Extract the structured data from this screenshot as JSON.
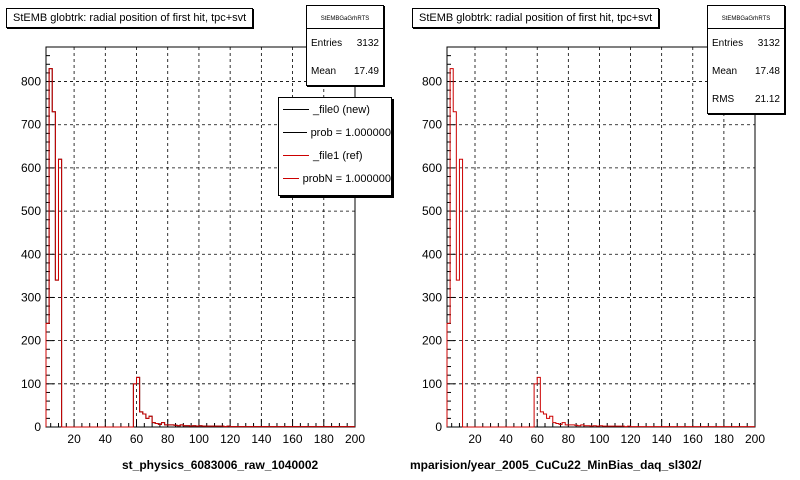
{
  "footer_text": "",
  "chart_data": [
    {
      "type": "histogram",
      "title": "StEMB globtrk: radial position of first hit, tpc+svt",
      "xlabel": "st_physics_6083006_raw_1040002",
      "ylabel": "",
      "xlim": [
        2,
        200
      ],
      "ylim": [
        0,
        880
      ],
      "xticks": [
        20,
        40,
        60,
        80,
        100,
        120,
        140,
        160,
        180,
        200
      ],
      "yticks": [
        0,
        100,
        200,
        300,
        400,
        500,
        600,
        700,
        800
      ],
      "grid": true,
      "bin_edges": [
        2,
        4,
        6,
        8,
        10,
        12,
        14,
        16,
        18,
        20,
        22,
        24,
        26,
        28,
        30,
        32,
        34,
        36,
        38,
        40,
        42,
        44,
        46,
        48,
        50,
        52,
        54,
        56,
        58,
        60,
        62,
        64,
        66,
        68,
        70,
        72,
        74,
        76,
        78,
        80,
        82,
        84,
        86,
        88,
        90,
        92,
        94,
        96,
        98,
        100,
        102,
        104,
        106,
        108,
        110,
        112,
        114,
        116,
        118,
        120,
        122,
        124,
        126,
        128,
        130,
        132,
        134,
        136,
        138,
        140,
        142,
        144,
        146,
        148,
        150,
        152,
        154,
        156,
        158,
        160,
        162,
        164,
        166,
        168,
        170,
        172,
        174,
        176,
        178,
        180,
        182,
        184,
        186,
        188,
        190,
        192,
        194,
        196,
        198,
        200
      ],
      "series": [
        {
          "name": "_file0 (new)",
          "color": "#000000",
          "values": [
            240,
            830,
            730,
            340,
            620,
            0,
            0,
            0,
            0,
            0,
            0,
            0,
            0,
            0,
            0,
            0,
            0,
            0,
            0,
            0,
            0,
            0,
            0,
            0,
            0,
            0,
            0,
            0,
            100,
            115,
            35,
            30,
            20,
            25,
            10,
            8,
            6,
            10,
            5,
            5,
            5,
            4,
            3,
            5,
            3,
            3,
            2,
            3,
            2,
            3,
            2,
            2,
            2,
            2,
            2,
            2,
            2,
            1,
            2,
            1,
            1,
            1,
            1,
            1,
            1,
            1,
            1,
            1,
            1,
            1,
            1,
            1,
            1,
            1,
            1,
            1,
            1,
            1,
            1,
            1,
            1,
            1,
            1,
            1,
            1,
            1,
            1,
            1,
            1,
            1,
            1,
            1,
            1,
            1,
            1,
            1,
            1,
            1,
            1
          ]
        },
        {
          "name": "_file1 (ref)",
          "color": "#cc0000",
          "values": [
            240,
            830,
            730,
            340,
            620,
            0,
            0,
            0,
            0,
            0,
            0,
            0,
            0,
            0,
            0,
            0,
            0,
            0,
            0,
            0,
            0,
            0,
            0,
            0,
            0,
            0,
            0,
            0,
            100,
            115,
            35,
            30,
            20,
            25,
            10,
            8,
            6,
            10,
            5,
            5,
            5,
            4,
            3,
            5,
            3,
            3,
            2,
            3,
            2,
            3,
            2,
            2,
            2,
            2,
            2,
            2,
            2,
            1,
            2,
            1,
            1,
            1,
            1,
            1,
            1,
            1,
            1,
            1,
            1,
            1,
            1,
            1,
            1,
            1,
            1,
            1,
            1,
            1,
            1,
            1,
            1,
            1,
            1,
            1,
            1,
            1,
            1,
            1,
            1,
            1,
            1,
            1,
            1,
            1,
            1,
            1,
            1,
            1,
            1
          ]
        }
      ],
      "stats": {
        "header": "StEMBGaGrhRTS",
        "rows": [
          {
            "label": "Entries",
            "value": "3132"
          },
          {
            "label": "Mean",
            "value": "17.49"
          }
        ]
      },
      "legend": {
        "placement": "top-right",
        "entries": [
          {
            "text": "_file0 (new)",
            "color": "#000000"
          },
          {
            "text": "prob = 1.000000",
            "color": "#000000"
          },
          {
            "text": "_file1 (ref)",
            "color": "#cc0000"
          },
          {
            "text": "probN = 1.000000",
            "color": "#cc0000"
          }
        ]
      }
    },
    {
      "type": "histogram",
      "title": "StEMB globtrk: radial position of first hit, tpc+svt",
      "xlabel": "mparision/year_2005_CuCu22_MinBias_daq_sl302/",
      "ylabel": "",
      "xlim": [
        2,
        200
      ],
      "ylim": [
        0,
        880
      ],
      "xticks": [
        20,
        40,
        60,
        80,
        100,
        120,
        140,
        160,
        180,
        200
      ],
      "yticks": [
        0,
        100,
        200,
        300,
        400,
        500,
        600,
        700,
        800
      ],
      "grid": true,
      "bin_edges": [
        2,
        4,
        6,
        8,
        10,
        12,
        14,
        16,
        18,
        20,
        22,
        24,
        26,
        28,
        30,
        32,
        34,
        36,
        38,
        40,
        42,
        44,
        46,
        48,
        50,
        52,
        54,
        56,
        58,
        60,
        62,
        64,
        66,
        68,
        70,
        72,
        74,
        76,
        78,
        80,
        82,
        84,
        86,
        88,
        90,
        92,
        94,
        96,
        98,
        100,
        102,
        104,
        106,
        108,
        110,
        112,
        114,
        116,
        118,
        120,
        122,
        124,
        126,
        128,
        130,
        132,
        134,
        136,
        138,
        140,
        142,
        144,
        146,
        148,
        150,
        152,
        154,
        156,
        158,
        160,
        162,
        164,
        166,
        168,
        170,
        172,
        174,
        176,
        178,
        180,
        182,
        184,
        186,
        188,
        190,
        192,
        194,
        196,
        198,
        200
      ],
      "series": [
        {
          "name": "",
          "color": "#cc0000",
          "values": [
            240,
            830,
            730,
            340,
            620,
            0,
            0,
            0,
            0,
            0,
            0,
            0,
            0,
            0,
            0,
            0,
            0,
            0,
            0,
            0,
            0,
            0,
            0,
            0,
            0,
            0,
            0,
            0,
            100,
            115,
            35,
            30,
            20,
            25,
            10,
            8,
            6,
            10,
            5,
            5,
            5,
            4,
            3,
            5,
            3,
            3,
            2,
            3,
            2,
            3,
            2,
            2,
            2,
            2,
            2,
            2,
            2,
            1,
            2,
            1,
            1,
            1,
            1,
            1,
            1,
            1,
            1,
            1,
            1,
            1,
            1,
            1,
            1,
            1,
            1,
            1,
            1,
            1,
            1,
            1,
            1,
            1,
            1,
            1,
            1,
            1,
            1,
            1,
            1,
            1,
            1,
            1,
            1,
            1,
            1,
            1,
            1,
            1,
            1
          ]
        }
      ],
      "stats": {
        "header": "StEMBGaGrhRTS",
        "rows": [
          {
            "label": "Entries",
            "value": "3132"
          },
          {
            "label": "Mean",
            "value": "17.48"
          },
          {
            "label": "RMS",
            "value": "21.12"
          }
        ]
      }
    }
  ]
}
